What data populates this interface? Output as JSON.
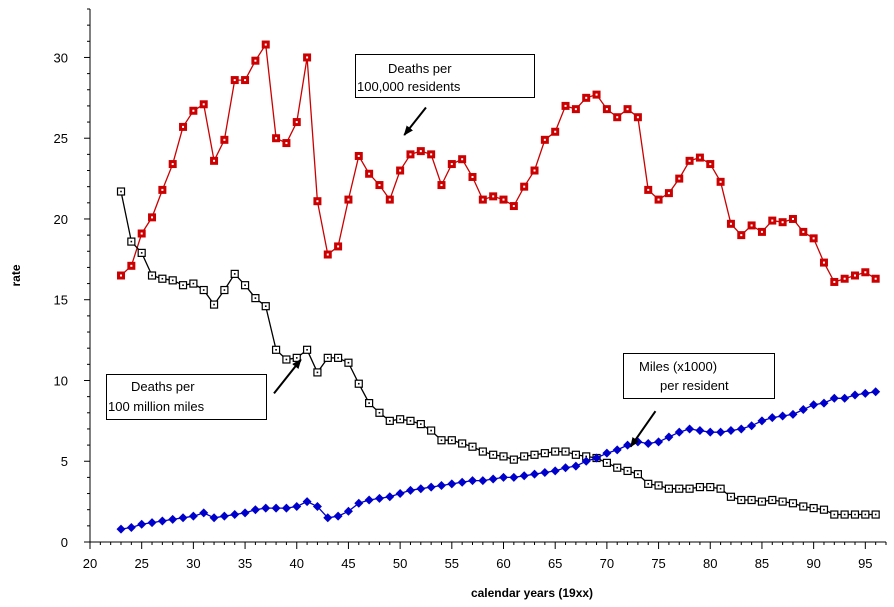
{
  "chart_data": {
    "type": "line",
    "xlabel": "calendar years (19xx)",
    "ylabel": "rate",
    "xlim": [
      20,
      97
    ],
    "ylim": [
      0,
      33
    ],
    "xticks": [
      20,
      25,
      30,
      35,
      40,
      45,
      50,
      55,
      60,
      65,
      70,
      75,
      80,
      85,
      90,
      95
    ],
    "yticks": [
      0,
      5,
      10,
      15,
      20,
      25,
      30
    ],
    "grid": false,
    "legend": "none",
    "series": [
      {
        "name": "Deaths per 100,000 residents",
        "color": "#cc0000",
        "marker": "square-filled",
        "x": [
          23,
          24,
          25,
          26,
          27,
          28,
          29,
          30,
          31,
          32,
          33,
          34,
          35,
          36,
          37,
          38,
          39,
          40,
          41,
          42,
          43,
          44,
          45,
          46,
          47,
          48,
          49,
          50,
          51,
          52,
          53,
          54,
          55,
          56,
          57,
          58,
          59,
          60,
          61,
          62,
          63,
          64,
          65,
          66,
          67,
          68,
          69,
          70,
          71,
          72,
          73,
          74,
          75,
          76,
          77,
          78,
          79,
          80,
          81,
          82,
          83,
          84,
          85,
          86,
          87,
          88,
          89,
          90,
          91,
          92,
          93,
          94,
          95,
          96
        ],
        "y": [
          16.5,
          17.1,
          19.1,
          20.1,
          21.8,
          23.4,
          25.7,
          26.7,
          27.1,
          23.6,
          24.9,
          28.6,
          28.6,
          29.8,
          30.8,
          25.0,
          24.7,
          26.0,
          30.0,
          21.1,
          17.8,
          18.3,
          21.2,
          23.9,
          22.8,
          22.1,
          21.2,
          23.0,
          24.0,
          24.2,
          24.0,
          22.1,
          23.4,
          23.7,
          22.6,
          21.2,
          21.4,
          21.2,
          20.8,
          22.0,
          23.0,
          24.9,
          25.4,
          27.0,
          26.8,
          27.5,
          27.7,
          26.8,
          26.3,
          26.8,
          26.3,
          21.8,
          21.2,
          21.6,
          22.5,
          23.6,
          23.8,
          23.4,
          22.3,
          19.7,
          19.0,
          19.6,
          19.2,
          19.9,
          19.8,
          20.0,
          19.2,
          18.8,
          17.3,
          16.1,
          16.3,
          16.5,
          16.7,
          16.3
        ]
      },
      {
        "name": "Deaths per 100 million miles",
        "color": "#000000",
        "marker": "square-open",
        "x": [
          23,
          24,
          25,
          26,
          27,
          28,
          29,
          30,
          31,
          32,
          33,
          34,
          35,
          36,
          37,
          38,
          39,
          40,
          41,
          42,
          43,
          44,
          45,
          46,
          47,
          48,
          49,
          50,
          51,
          52,
          53,
          54,
          55,
          56,
          57,
          58,
          59,
          60,
          61,
          62,
          63,
          64,
          65,
          66,
          67,
          68,
          69,
          70,
          71,
          72,
          73,
          74,
          75,
          76,
          77,
          78,
          79,
          80,
          81,
          82,
          83,
          84,
          85,
          86,
          87,
          88,
          89,
          90,
          91,
          92,
          93,
          94,
          95,
          96
        ],
        "y": [
          21.7,
          18.6,
          17.9,
          16.5,
          16.3,
          16.2,
          15.9,
          16.0,
          15.6,
          14.7,
          15.6,
          16.6,
          15.9,
          15.1,
          14.6,
          11.9,
          11.3,
          11.4,
          11.9,
          10.5,
          11.4,
          11.4,
          11.1,
          9.8,
          8.6,
          8.0,
          7.5,
          7.6,
          7.5,
          7.3,
          6.9,
          6.3,
          6.3,
          6.1,
          5.9,
          5.6,
          5.4,
          5.3,
          5.1,
          5.3,
          5.4,
          5.5,
          5.6,
          5.6,
          5.4,
          5.3,
          5.2,
          4.9,
          4.6,
          4.4,
          4.2,
          3.6,
          3.5,
          3.3,
          3.3,
          3.3,
          3.4,
          3.4,
          3.3,
          2.8,
          2.6,
          2.6,
          2.5,
          2.6,
          2.5,
          2.4,
          2.2,
          2.1,
          2.0,
          1.7,
          1.7,
          1.7,
          1.7,
          1.7
        ]
      },
      {
        "name": "Miles (x1000) per resident",
        "color": "#0000cc",
        "marker": "diamond-filled",
        "x": [
          23,
          24,
          25,
          26,
          27,
          28,
          29,
          30,
          31,
          32,
          33,
          34,
          35,
          36,
          37,
          38,
          39,
          40,
          41,
          42,
          43,
          44,
          45,
          46,
          47,
          48,
          49,
          50,
          51,
          52,
          53,
          54,
          55,
          56,
          57,
          58,
          59,
          60,
          61,
          62,
          63,
          64,
          65,
          66,
          67,
          68,
          69,
          70,
          71,
          72,
          73,
          74,
          75,
          76,
          77,
          78,
          79,
          80,
          81,
          82,
          83,
          84,
          85,
          86,
          87,
          88,
          89,
          90,
          91,
          92,
          93,
          94,
          95,
          96
        ],
        "y": [
          0.8,
          0.9,
          1.1,
          1.2,
          1.3,
          1.4,
          1.5,
          1.6,
          1.8,
          1.5,
          1.6,
          1.7,
          1.8,
          2.0,
          2.1,
          2.1,
          2.1,
          2.2,
          2.5,
          2.2,
          1.5,
          1.6,
          1.9,
          2.4,
          2.6,
          2.7,
          2.8,
          3.0,
          3.2,
          3.3,
          3.4,
          3.5,
          3.6,
          3.7,
          3.8,
          3.8,
          3.9,
          4.0,
          4.0,
          4.1,
          4.2,
          4.3,
          4.4,
          4.6,
          4.7,
          5.0,
          5.2,
          5.5,
          5.7,
          6.0,
          6.2,
          6.1,
          6.2,
          6.5,
          6.8,
          7.0,
          6.9,
          6.8,
          6.8,
          6.9,
          7.0,
          7.2,
          7.5,
          7.7,
          7.8,
          7.9,
          8.2,
          8.5,
          8.6,
          8.9,
          8.9,
          9.1,
          9.2,
          9.3
        ]
      }
    ],
    "annotations": [
      {
        "id": "residents",
        "lines": [
          "Deaths per",
          "100,000 residents"
        ],
        "arrow_from": [
          52.5,
          26.9
        ],
        "arrow_to": [
          50.4,
          25.2
        ]
      },
      {
        "id": "miles",
        "lines": [
          "Deaths per",
          "100 million miles"
        ],
        "arrow_from": [
          37.8,
          9.2
        ],
        "arrow_to": [
          40.4,
          11.3
        ]
      },
      {
        "id": "perresident",
        "lines": [
          "Miles (x1000)",
          "per resident"
        ],
        "arrow_from": [
          74.7,
          8.1
        ],
        "arrow_to": [
          72.3,
          5.9
        ]
      }
    ]
  }
}
